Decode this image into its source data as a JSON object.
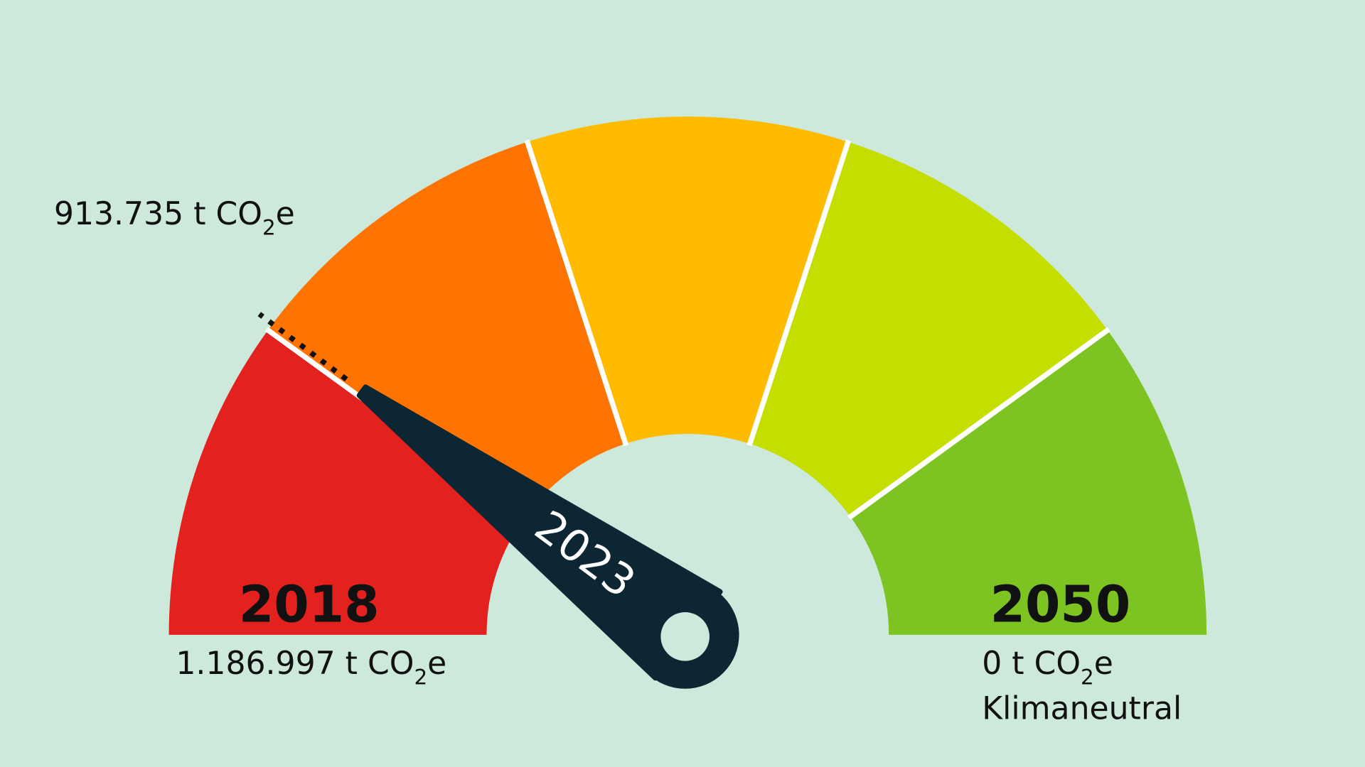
{
  "chart_data": {
    "type": "gauge",
    "start": {
      "year": "2018",
      "value": 1186997,
      "label": "1.186.997 t CO",
      "sub": "2",
      "suffix": "e"
    },
    "end": {
      "year": "2050",
      "value": 0,
      "label": "0 t CO",
      "sub": "2",
      "suffix": "e",
      "note": "Klimaneutral"
    },
    "current": {
      "year": "2023",
      "value": 913735,
      "label": "913.735 t CO",
      "sub": "2",
      "suffix": "e"
    },
    "segments": [
      "#e3211f",
      "#ff7300",
      "#ffbb00",
      "#c4de00",
      "#7dc322"
    ],
    "needle_color": "#0c2733",
    "background": "#cde9dc"
  }
}
